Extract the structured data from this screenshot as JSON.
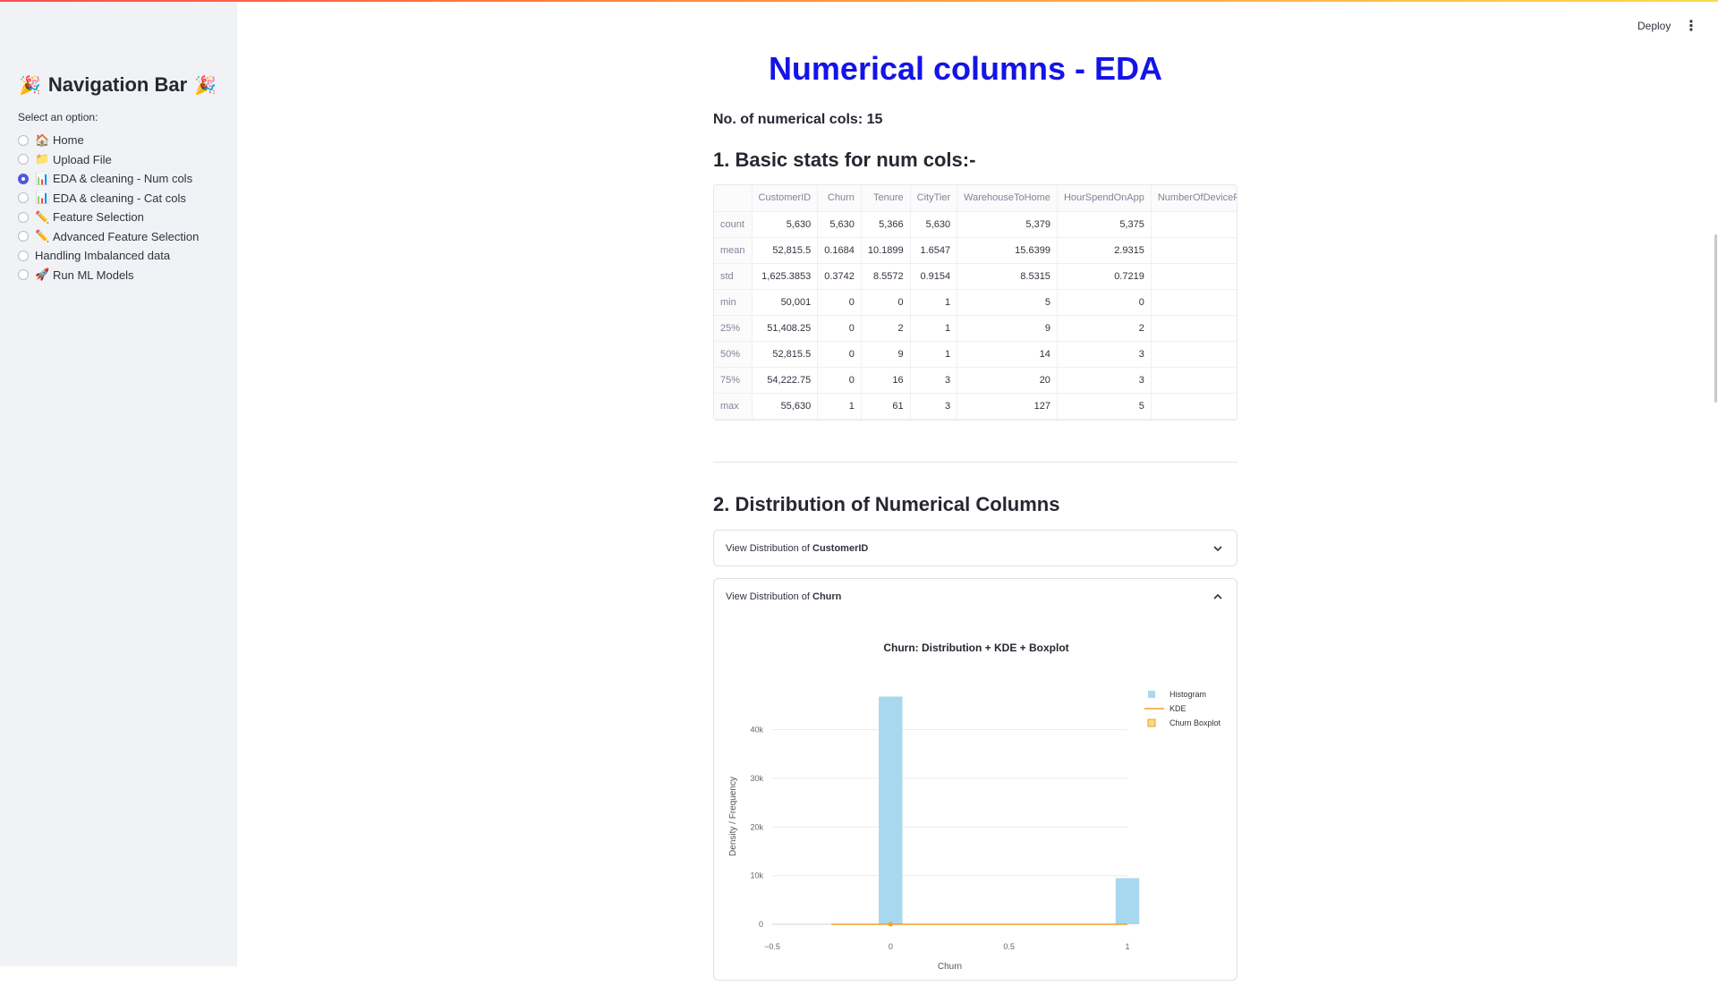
{
  "header": {
    "deploy_label": "Deploy"
  },
  "sidebar": {
    "title": "Navigation Bar",
    "select_label": "Select an option:",
    "items": [
      {
        "label": "Home",
        "icon": "home-icon",
        "checked": false
      },
      {
        "label": "Upload File",
        "icon": "folder-icon",
        "checked": false
      },
      {
        "label": "EDA & cleaning - Num cols",
        "icon": "bar-chart-icon",
        "checked": true
      },
      {
        "label": "EDA & cleaning - Cat cols",
        "icon": "bar-chart-icon",
        "checked": false
      },
      {
        "label": "Feature Selection",
        "icon": "pencil-icon",
        "checked": false
      },
      {
        "label": "Advanced Feature Selection",
        "icon": "pencil-icon",
        "checked": false
      },
      {
        "label": "Handling Imbalanced data",
        "icon": "",
        "checked": false
      },
      {
        "label": "Run ML Models",
        "icon": "rocket-icon",
        "checked": false
      }
    ]
  },
  "main": {
    "title": "Numerical columns - EDA",
    "num_cols_text": "No. of numerical cols: 15",
    "section1_title": "1. Basic stats for num cols:-",
    "section2_title": "2. Distribution of Numerical Columns",
    "stats_table": {
      "columns": [
        "CustomerID",
        "Churn",
        "Tenure",
        "CityTier",
        "WarehouseToHome",
        "HourSpendOnApp",
        "NumberOfDeviceReg"
      ],
      "rows": [
        {
          "label": "count",
          "values": [
            "5,630",
            "5,630",
            "5,366",
            "5,630",
            "5,379",
            "5,375",
            ""
          ]
        },
        {
          "label": "mean",
          "values": [
            "52,815.5",
            "0.1684",
            "10.1899",
            "1.6547",
            "15.6399",
            "2.9315",
            ""
          ]
        },
        {
          "label": "std",
          "values": [
            "1,625.3853",
            "0.3742",
            "8.5572",
            "0.9154",
            "8.5315",
            "0.7219",
            ""
          ]
        },
        {
          "label": "min",
          "values": [
            "50,001",
            "0",
            "0",
            "1",
            "5",
            "0",
            ""
          ]
        },
        {
          "label": "25%",
          "values": [
            "51,408.25",
            "0",
            "2",
            "1",
            "9",
            "2",
            ""
          ]
        },
        {
          "label": "50%",
          "values": [
            "52,815.5",
            "0",
            "9",
            "1",
            "14",
            "3",
            ""
          ]
        },
        {
          "label": "75%",
          "values": [
            "54,222.75",
            "0",
            "16",
            "3",
            "20",
            "3",
            ""
          ]
        },
        {
          "label": "max",
          "values": [
            "55,630",
            "1",
            "61",
            "3",
            "127",
            "5",
            ""
          ]
        }
      ]
    },
    "expanders": [
      {
        "prefix": "View Distribution of ",
        "column": "CustomerID",
        "expanded": false
      },
      {
        "prefix": "View Distribution of ",
        "column": "Churn",
        "expanded": true
      }
    ]
  },
  "chart_data": {
    "type": "bar",
    "title": "Churn: Distribution + KDE + Boxplot",
    "xlabel": "Churn",
    "ylabel": "Density / Frequency",
    "xlim": [
      -0.5,
      1.0
    ],
    "ylim": [
      0,
      48000
    ],
    "x_ticks": [
      -0.5,
      0,
      0.5,
      1
    ],
    "x_tick_labels": [
      "−0.5",
      "0",
      "0.5",
      "1"
    ],
    "y_ticks": [
      0,
      10000,
      20000,
      30000,
      40000
    ],
    "y_tick_labels": [
      "0",
      "10k",
      "20k",
      "30k",
      "40k"
    ],
    "grid": true,
    "legend_position": "top-right",
    "series": [
      {
        "name": "Histogram",
        "kind": "bar",
        "color": "#a8d8f0",
        "bins": [
          {
            "x0": -0.05,
            "x1": 0.05,
            "value": 46800
          },
          {
            "x0": 0.95,
            "x1": 1.05,
            "value": 9480
          }
        ]
      },
      {
        "name": "KDE",
        "kind": "line",
        "color": "#f0a020",
        "x": [
          -0.25,
          0,
          0.5,
          1.0
        ],
        "y": [
          0,
          0,
          0,
          0
        ]
      },
      {
        "name": "Churn Boxplot",
        "kind": "box",
        "color": "#f0a020",
        "min": 0,
        "q1": 0,
        "median": 0,
        "q3": 0,
        "max": 1
      }
    ]
  }
}
